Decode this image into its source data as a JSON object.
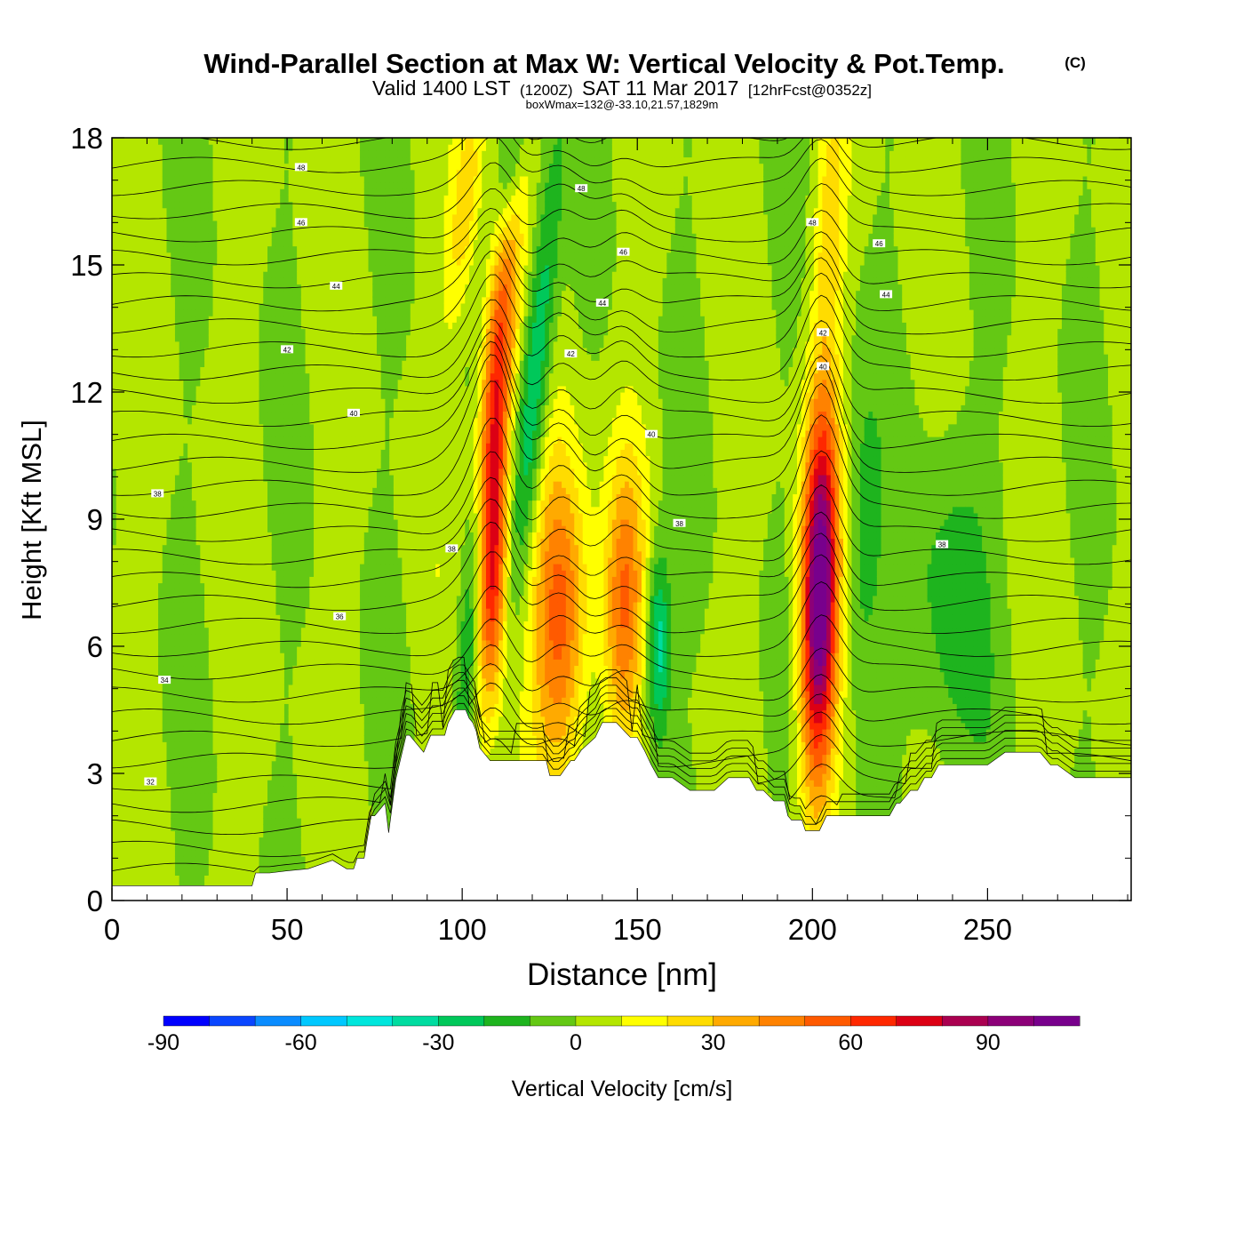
{
  "header": {
    "title": "Wind-Parallel Section at Max W: Vertical Velocity & Pot.Temp.",
    "copyright": "(C)",
    "valid_prefix": "Valid 1400 LST",
    "valid_zone": "(1200Z)",
    "valid_date": "SAT 11 Mar 2017",
    "forecast": "[12hrFcst@0352z]",
    "boxwmax": "boxWmax=132@-33.10,21.57,1829m"
  },
  "chart_data": {
    "type": "heatmap",
    "xlabel": "Distance [nm]",
    "ylabel": "Height [Kft MSL]",
    "xlim": [
      0,
      291
    ],
    "ylim": [
      0,
      18
    ],
    "x_ticks": [
      0,
      50,
      100,
      150,
      200,
      250
    ],
    "y_ticks": [
      0,
      3,
      6,
      9,
      12,
      15,
      18
    ],
    "terrain": {
      "x": [
        0,
        40,
        41,
        45,
        50,
        56,
        63,
        67,
        69,
        70,
        72,
        73,
        74,
        75,
        78,
        79,
        81,
        84,
        85,
        89,
        91,
        94,
        95,
        96,
        98,
        101,
        102,
        103,
        104,
        105,
        108,
        110,
        113,
        115,
        116,
        117,
        118,
        120,
        121,
        124,
        125,
        128,
        131,
        132,
        134,
        138,
        140,
        142,
        144,
        148,
        149,
        150,
        152,
        154,
        156,
        158,
        160,
        165,
        168,
        170,
        172,
        176,
        179,
        182,
        184,
        186,
        189,
        192,
        193,
        194,
        197,
        198,
        200,
        201,
        202,
        204,
        205,
        210,
        214,
        218,
        220,
        222,
        224,
        225,
        228,
        230,
        232,
        234,
        236,
        238,
        242,
        245,
        250,
        255,
        260,
        262,
        265,
        268,
        270,
        275,
        280,
        285,
        291
      ],
      "y": [
        0.35,
        0.35,
        0.65,
        0.65,
        0.7,
        0.75,
        0.95,
        0.75,
        0.75,
        1.0,
        1.0,
        1.5,
        2.0,
        2.0,
        2.3,
        1.6,
        2.85,
        3.9,
        3.9,
        3.5,
        3.9,
        3.9,
        3.9,
        4.2,
        4.5,
        4.5,
        4.3,
        4.2,
        4.0,
        3.6,
        3.3,
        3.3,
        3.3,
        3.3,
        3.3,
        3.3,
        3.3,
        3.3,
        3.3,
        3.3,
        2.95,
        2.95,
        3.3,
        3.3,
        3.55,
        3.85,
        4.2,
        4.2,
        4.2,
        3.85,
        3.85,
        3.85,
        3.55,
        3.2,
        2.9,
        2.9,
        2.9,
        2.6,
        2.6,
        2.6,
        2.6,
        2.9,
        2.9,
        2.9,
        2.6,
        2.6,
        2.35,
        2.35,
        2.0,
        1.9,
        1.9,
        1.65,
        1.65,
        1.65,
        1.65,
        2.0,
        2.0,
        2.0,
        2.0,
        2.0,
        2.0,
        2.0,
        2.3,
        2.3,
        2.6,
        2.6,
        2.9,
        2.9,
        3.2,
        3.2,
        3.2,
        3.2,
        3.2,
        3.5,
        3.5,
        3.5,
        3.5,
        3.2,
        3.2,
        2.9,
        2.9,
        2.9,
        2.9
      ]
    },
    "updrafts": [
      {
        "x": 109,
        "y": 11.5,
        "peak": 75,
        "sx": 3.2,
        "sy": 3.6,
        "tilt": 0.22
      },
      {
        "x": 109,
        "y": 7.5,
        "peak": 55,
        "sx": 2.8,
        "sy": 2.2,
        "tilt": 0.1
      },
      {
        "x": 128,
        "y": 6.8,
        "peak": 55,
        "sx": 5.5,
        "sy": 2.6,
        "tilt": 0.0
      },
      {
        "x": 146,
        "y": 7.0,
        "peak": 45,
        "sx": 4.0,
        "sy": 2.4,
        "tilt": 0.05
      },
      {
        "x": 202,
        "y": 7.2,
        "peak": 110,
        "sx": 3.6,
        "sy": 3.2,
        "tilt": 0.05
      },
      {
        "x": 101,
        "y": 16.5,
        "peak": 25,
        "sx": 3.0,
        "sy": 2.0,
        "tilt": 0.3
      },
      {
        "x": 205,
        "y": 16.0,
        "peak": 22,
        "sx": 3.0,
        "sy": 2.0,
        "tilt": 0.1
      }
    ],
    "downdrafts": [
      {
        "x": 103,
        "y": 7.0,
        "peak": -42,
        "sx": 2.6,
        "sy": 2.8,
        "tilt": 0.2
      },
      {
        "x": 121,
        "y": 12.5,
        "peak": -38,
        "sx": 3.0,
        "sy": 3.5,
        "tilt": 0.25
      },
      {
        "x": 156,
        "y": 6.0,
        "peak": -40,
        "sx": 2.5,
        "sy": 1.6,
        "tilt": 0.0
      },
      {
        "x": 114,
        "y": 17.5,
        "peak": -30,
        "sx": 2.5,
        "sy": 1.5,
        "tilt": 0.3
      },
      {
        "x": 239,
        "y": 7.0,
        "peak": -18,
        "sx": 8.0,
        "sy": 3.0,
        "tilt": 0.0
      },
      {
        "x": 214,
        "y": 8.0,
        "peak": -16,
        "sx": 4.0,
        "sy": 3.0,
        "tilt": 0.0
      }
    ],
    "contour_labels": [
      {
        "x": 54,
        "y": 17.3,
        "text": "48"
      },
      {
        "x": 54,
        "y": 16.0,
        "text": "46"
      },
      {
        "x": 64,
        "y": 14.5,
        "text": "44"
      },
      {
        "x": 50,
        "y": 13.0,
        "text": "42"
      },
      {
        "x": 69,
        "y": 11.5,
        "text": "40"
      },
      {
        "x": 13,
        "y": 9.6,
        "text": "38"
      },
      {
        "x": 65,
        "y": 6.7,
        "text": "36"
      },
      {
        "x": 15,
        "y": 5.2,
        "text": "34"
      },
      {
        "x": 11,
        "y": 2.8,
        "text": "32"
      },
      {
        "x": 134,
        "y": 16.8,
        "text": "48"
      },
      {
        "x": 146,
        "y": 15.3,
        "text": "46"
      },
      {
        "x": 140,
        "y": 14.1,
        "text": "44"
      },
      {
        "x": 131,
        "y": 12.9,
        "text": "42"
      },
      {
        "x": 154,
        "y": 11.0,
        "text": "40"
      },
      {
        "x": 97,
        "y": 8.3,
        "text": "38"
      },
      {
        "x": 162,
        "y": 8.9,
        "text": "38"
      },
      {
        "x": 200,
        "y": 16.0,
        "text": "48"
      },
      {
        "x": 219,
        "y": 15.5,
        "text": "46"
      },
      {
        "x": 221,
        "y": 14.3,
        "text": "44"
      },
      {
        "x": 203,
        "y": 13.4,
        "text": "42"
      },
      {
        "x": 203,
        "y": 12.6,
        "text": "40"
      },
      {
        "x": 237,
        "y": 8.4,
        "text": "38"
      }
    ],
    "colorbar": {
      "min": -90,
      "max": 110,
      "step": 10,
      "tick_labels": [
        "-90",
        "-60",
        "-30",
        "0",
        "30",
        "60",
        "90"
      ],
      "tick_values": [
        -90,
        -60,
        -30,
        0,
        30,
        60,
        90
      ],
      "label": "Vertical Velocity [cm/s]",
      "colors": [
        "#0000ff",
        "#0a46ff",
        "#0a8cff",
        "#00c8ff",
        "#00e6dc",
        "#00dca0",
        "#00c85a",
        "#1eb41e",
        "#64c814",
        "#b4e600",
        "#ffff00",
        "#ffdc00",
        "#ffaa00",
        "#ff8200",
        "#ff5a00",
        "#ff2800",
        "#dc0014",
        "#aa0050",
        "#8c0078",
        "#78008c"
      ]
    }
  }
}
